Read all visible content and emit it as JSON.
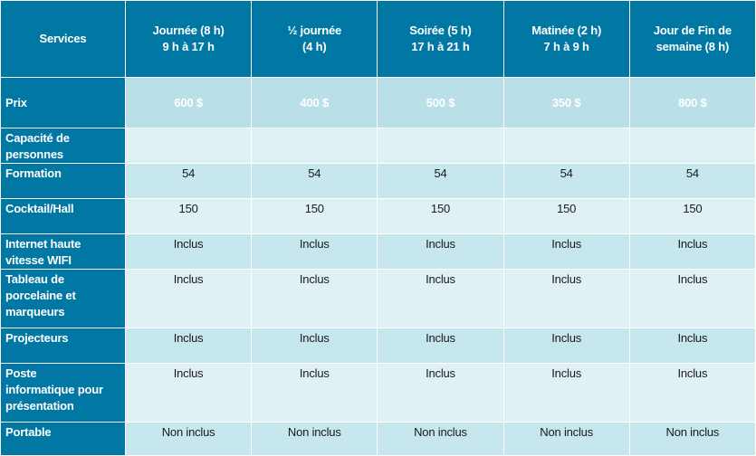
{
  "columns": [
    "Services",
    "Journée (8 h)\n9 h à 17 h",
    "½ journée\n(4 h)",
    "Soirée (5 h)\n17 h à 21 h",
    "Matinée (2 h)\n7 h à 9 h",
    "Jour de Fin de\nsemaine (8 h)"
  ],
  "rows": [
    {
      "label": "Prix",
      "values": [
        "600 $",
        "400 $",
        "500 $",
        "350 $",
        "800 $"
      ]
    },
    {
      "label": "Capacité de\npersonnes",
      "values": [
        "",
        "",
        "",
        "",
        ""
      ]
    },
    {
      "label": "Formation",
      "values": [
        "54",
        "54",
        "54",
        "54",
        "54"
      ]
    },
    {
      "label": "Cocktail/Hall",
      "values": [
        "150",
        "150",
        "150",
        "150",
        "150"
      ]
    },
    {
      "label": "Internet haute\nvitesse WIFI",
      "values": [
        "Inclus",
        "Inclus",
        "Inclus",
        "Inclus",
        "Inclus"
      ]
    },
    {
      "label": "Tableau de\nporcelaine et\nmarqueurs",
      "values": [
        "Inclus",
        "Inclus",
        "Inclus",
        "Inclus",
        "Inclus"
      ]
    },
    {
      "label": "Projecteurs",
      "values": [
        "Inclus",
        "Inclus",
        "Inclus",
        "Inclus",
        "Inclus"
      ]
    },
    {
      "label": "Poste\ninformatique pour\nprésentation",
      "values": [
        "Inclus",
        "Inclus",
        "Inclus",
        "Inclus",
        "Inclus"
      ]
    },
    {
      "label": "Portable",
      "values": [
        "Non inclus",
        "Non inclus",
        "Non inclus",
        "Non inclus",
        "Non inclus"
      ]
    }
  ],
  "colors": {
    "header_bg": "#0078a3",
    "price_bg": "#b9dfe8",
    "row_light": "#dff1f5",
    "row_mid": "#c7e7ee"
  }
}
